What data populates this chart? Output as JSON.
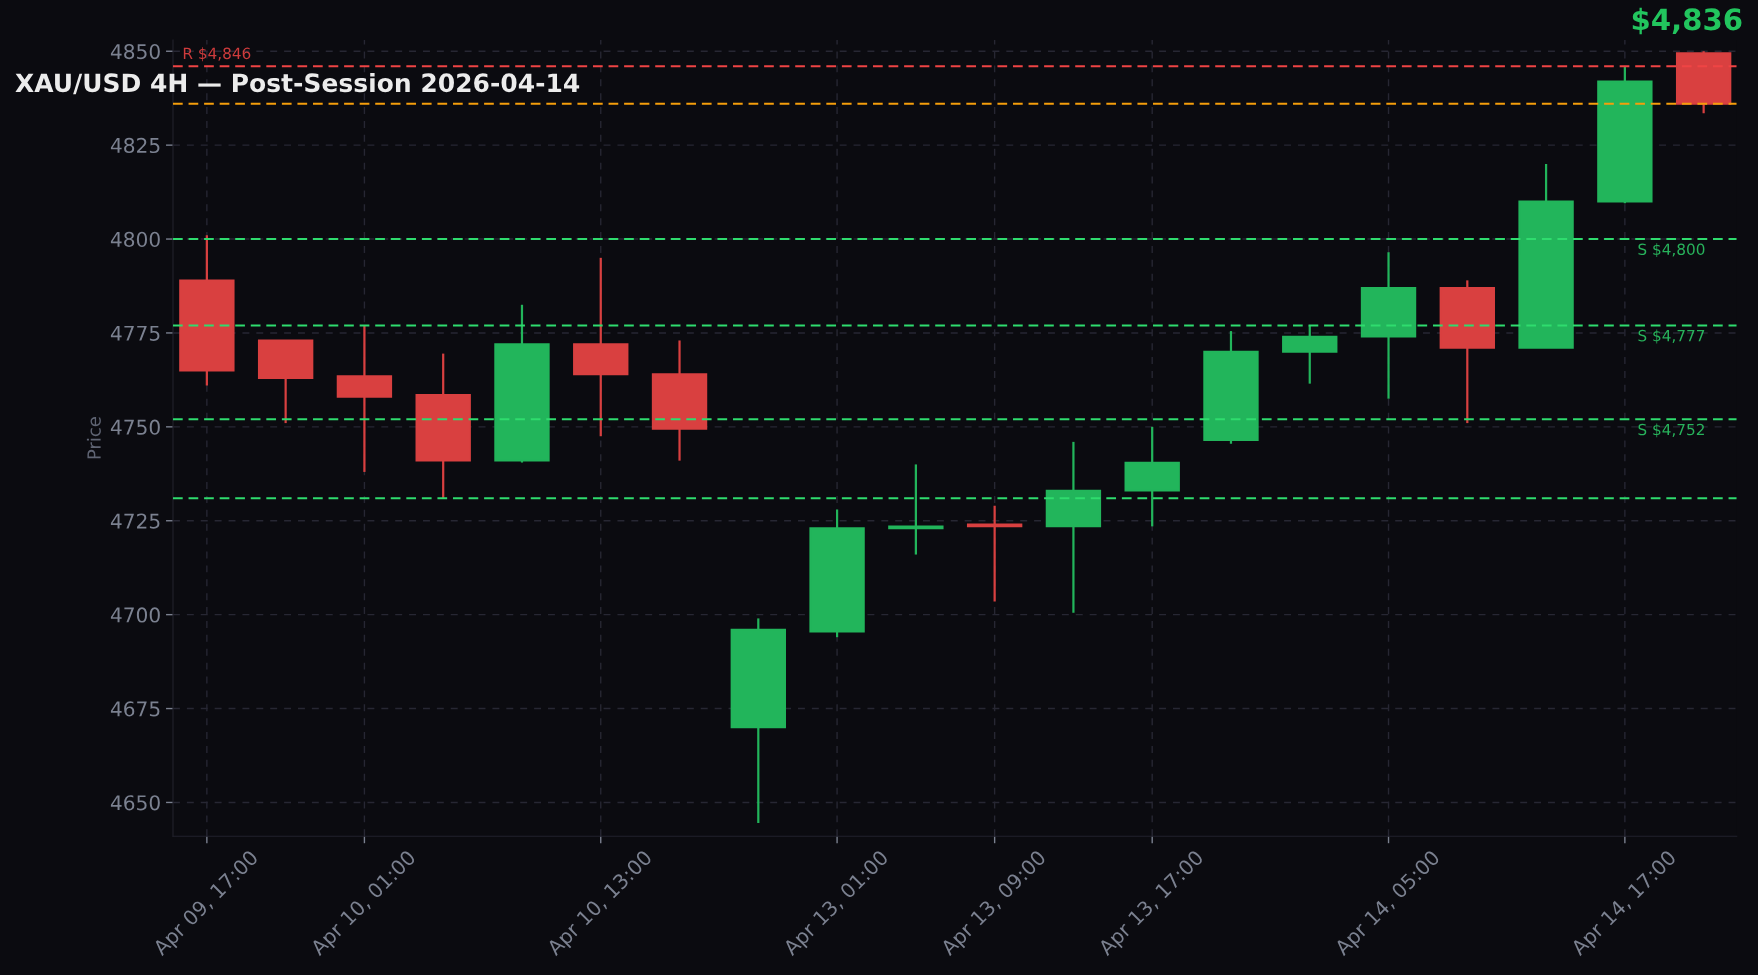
{
  "chart_data": {
    "type": "candlestick",
    "title": "XAU/USD 4H — Post-Session 2026-04-14",
    "ylabel": "Price",
    "categories": [
      "Apr 09, 17:00",
      null,
      "Apr 10, 01:00",
      null,
      null,
      "Apr 10, 13:00",
      null,
      null,
      "Apr 13, 01:00",
      null,
      "Apr 13, 09:00",
      null,
      "Apr 13, 17:00",
      null,
      null,
      "Apr 14, 05:00",
      null,
      null,
      "Apr 14, 17:00",
      null
    ],
    "ohlc": [
      [
        4789,
        4801,
        4761,
        4765
      ],
      [
        4773,
        4773,
        4751,
        4763
      ],
      [
        4763.5,
        4777,
        4738,
        4758
      ],
      [
        4758.5,
        4769.5,
        4731,
        4741
      ],
      [
        4741,
        4782.5,
        4740.5,
        4772
      ],
      [
        4772,
        4795,
        4747.5,
        4764
      ],
      [
        4764,
        4773,
        4741,
        4749.5
      ],
      [
        4670,
        4699,
        4644.5,
        4696
      ],
      [
        4695.5,
        4728,
        4694,
        4723
      ],
      [
        4723,
        4740,
        4716,
        4723.5
      ],
      [
        4724,
        4729,
        4703.5,
        4723.5
      ],
      [
        4723.5,
        4746,
        4700.5,
        4733
      ],
      [
        4733,
        4750,
        4723.5,
        4740.5
      ],
      [
        4746.5,
        4775.5,
        4745.5,
        4770
      ],
      [
        4770,
        4777,
        4761.5,
        4774
      ],
      [
        4774,
        4796.5,
        4757.5,
        4787
      ],
      [
        4787,
        4789,
        4751,
        4771
      ],
      [
        4771,
        4820,
        4771,
        4810
      ],
      [
        4810,
        4846,
        4809.5,
        4842
      ],
      [
        4849.5,
        4850,
        4833.5,
        4836
      ]
    ],
    "colors": [
      "#d94040",
      "#d94040",
      "#d94040",
      "#d94040",
      "#22b55b",
      "#d94040",
      "#d94040",
      "#22b55b",
      "#22b55b",
      "#22b55b",
      "#d94040",
      "#22b55b",
      "#22b55b",
      "#22b55b",
      "#22b55b",
      "#22b55b",
      "#d94040",
      "#22b55b",
      "#22b55b",
      "#d94040"
    ],
    "ylim": [
      4641,
      4853
    ],
    "yticks": [
      4650,
      4675,
      4700,
      4725,
      4750,
      4775,
      4800,
      4825,
      4850
    ],
    "grid": true,
    "ref_lines": [
      {
        "axis": "y",
        "value": 4846,
        "label": "R $4,846",
        "color": "#ef4444",
        "line_style": "dashed"
      },
      {
        "axis": "y",
        "value": 4836,
        "color": "#f59e0b",
        "line_style": "dashed"
      },
      {
        "axis": "y",
        "value": 4800,
        "label": "S $4,800",
        "color": "#2fdc6e",
        "line_style": "dashed"
      },
      {
        "axis": "y",
        "value": 4777,
        "label": "S $4,777",
        "color": "#2fdc6e",
        "line_style": "dashed"
      },
      {
        "axis": "y",
        "value": 4752,
        "label": "S $4,752",
        "color": "#2fdc6e",
        "line_style": "dashed"
      },
      {
        "axis": "y",
        "value": 4731,
        "color": "#2fdc6e",
        "line_style": "dashed"
      }
    ],
    "annotations": [
      "$4,836"
    ]
  }
}
